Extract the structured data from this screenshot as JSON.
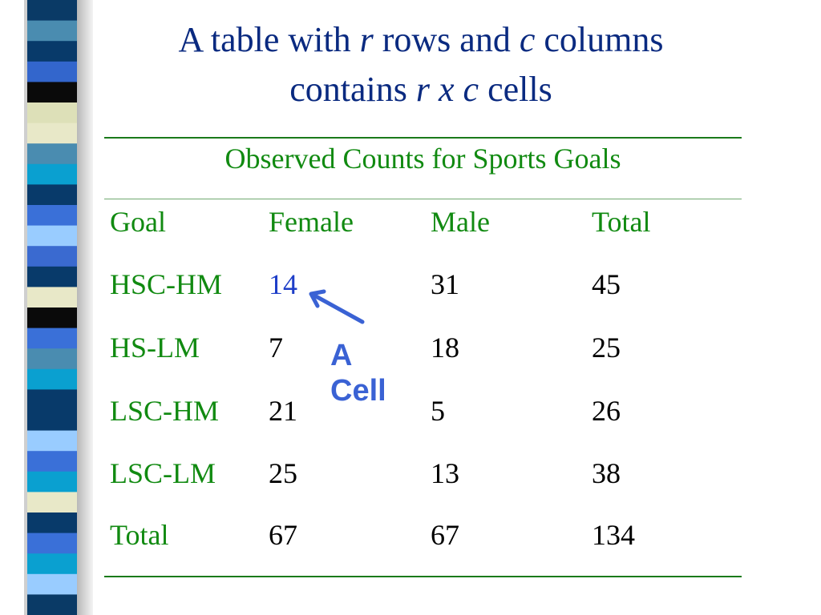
{
  "title": {
    "line1_pre": "A table with ",
    "line1_r": "r",
    "line1_mid": " rows and ",
    "line1_c": "c",
    "line1_post": " columns",
    "line2_pre": "contains ",
    "line2_rxc": "r x c",
    "line2_post": " cells"
  },
  "table": {
    "caption": "Observed Counts for Sports Goals",
    "headers": [
      "Goal",
      "Female",
      "Male",
      "Total"
    ],
    "rows": [
      [
        "HSC-HM",
        "14",
        "31",
        "45"
      ],
      [
        "HS-LM",
        "7",
        "18",
        "25"
      ],
      [
        "LSC-HM",
        "21",
        "5",
        "26"
      ],
      [
        "LSC-LM",
        "25",
        "13",
        "38"
      ],
      [
        "Total",
        "67",
        "67",
        "134"
      ]
    ],
    "highlighted_cell_color": "#1e3ec8"
  },
  "callout": {
    "line1": "A",
    "line2": "Cell",
    "color": "#3a62d4"
  },
  "colors": {
    "title": "#0a2a80",
    "row_labels": "#118a11",
    "rules": "#1a7a1a"
  }
}
